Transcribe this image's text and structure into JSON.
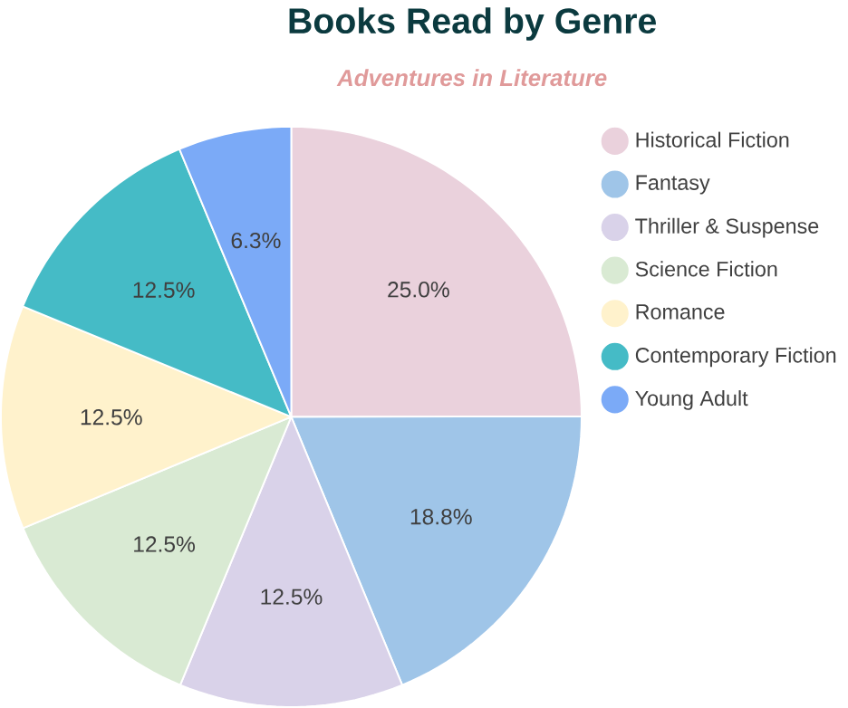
{
  "chart_data": {
    "type": "pie",
    "title": "Books Read by Genre",
    "subtitle": "Adventures in Literature",
    "categories": [
      "Historical Fiction",
      "Fantasy",
      "Thriller & Suspense",
      "Science Fiction",
      "Romance",
      "Contemporary Fiction",
      "Young Adult"
    ],
    "values": [
      25.0,
      18.8,
      12.5,
      12.5,
      12.5,
      12.5,
      6.3
    ],
    "value_labels": [
      "25.0%",
      "18.8%",
      "12.5%",
      "12.5%",
      "12.5%",
      "12.5%",
      "6.3%"
    ],
    "colors": [
      "#ead1dc",
      "#9fc5e8",
      "#d9d2e9",
      "#d9ead3",
      "#fff2cc",
      "#45bbc6",
      "#7baaf7"
    ],
    "legend": "right"
  }
}
